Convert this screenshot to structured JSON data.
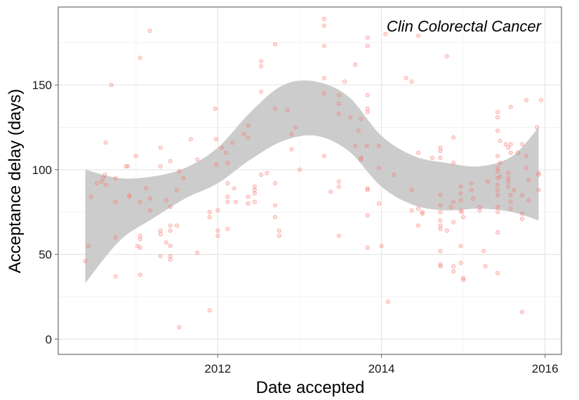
{
  "chart_data": {
    "type": "scatter",
    "title": "",
    "annotation": "Clin Colorectal Cancer",
    "xlabel": "Date accepted",
    "ylabel": "Acceptance delay (days)",
    "x_ticks": [
      2012,
      2014,
      2016
    ],
    "y_ticks": [
      0,
      50,
      100,
      150
    ],
    "xlim": [
      2010.05,
      2016.2
    ],
    "ylim": [
      -9,
      196
    ],
    "grid": true,
    "legend": "none",
    "point_color": "#f8766d",
    "band_color": "#cccccc",
    "points": [
      [
        2010.38,
        46
      ],
      [
        2010.42,
        55
      ],
      [
        2010.45,
        84
      ],
      [
        2010.52,
        92
      ],
      [
        2010.58,
        93
      ],
      [
        2010.6,
        95
      ],
      [
        2010.62,
        97
      ],
      [
        2010.63,
        116
      ],
      [
        2010.63,
        91
      ],
      [
        2010.7,
        150
      ],
      [
        2010.75,
        95
      ],
      [
        2010.75,
        81
      ],
      [
        2010.75,
        60
      ],
      [
        2010.75,
        37
      ],
      [
        2010.88,
        102
      ],
      [
        2010.9,
        102
      ],
      [
        2010.92,
        85
      ],
      [
        2010.92,
        84
      ],
      [
        2011.0,
        108
      ],
      [
        2011.02,
        55
      ],
      [
        2011.05,
        166
      ],
      [
        2011.05,
        81
      ],
      [
        2011.05,
        61
      ],
      [
        2011.05,
        59
      ],
      [
        2011.05,
        54
      ],
      [
        2011.05,
        38
      ],
      [
        2011.12,
        89
      ],
      [
        2011.17,
        182
      ],
      [
        2011.17,
        83
      ],
      [
        2011.17,
        76
      ],
      [
        2011.3,
        113
      ],
      [
        2011.3,
        102
      ],
      [
        2011.3,
        64
      ],
      [
        2011.3,
        62
      ],
      [
        2011.3,
        49
      ],
      [
        2011.37,
        82
      ],
      [
        2011.37,
        57
      ],
      [
        2011.42,
        105
      ],
      [
        2011.42,
        78
      ],
      [
        2011.42,
        67
      ],
      [
        2011.42,
        64
      ],
      [
        2011.42,
        55
      ],
      [
        2011.42,
        49
      ],
      [
        2011.42,
        47
      ],
      [
        2011.5,
        88
      ],
      [
        2011.5,
        67
      ],
      [
        2011.53,
        99
      ],
      [
        2011.53,
        7
      ],
      [
        2011.58,
        95
      ],
      [
        2011.67,
        118
      ],
      [
        2011.75,
        106
      ],
      [
        2011.75,
        51
      ],
      [
        2011.9,
        75
      ],
      [
        2011.9,
        72
      ],
      [
        2011.9,
        17
      ],
      [
        2011.97,
        136
      ],
      [
        2011.98,
        118
      ],
      [
        2011.98,
        103
      ],
      [
        2012.0,
        76
      ],
      [
        2012.0,
        64
      ],
      [
        2012.0,
        61
      ],
      [
        2012.05,
        113
      ],
      [
        2012.1,
        110
      ],
      [
        2012.12,
        104
      ],
      [
        2012.12,
        92
      ],
      [
        2012.12,
        84
      ],
      [
        2012.12,
        81
      ],
      [
        2012.12,
        65
      ],
      [
        2012.18,
        116
      ],
      [
        2012.2,
        89
      ],
      [
        2012.22,
        81
      ],
      [
        2012.32,
        121
      ],
      [
        2012.37,
        126
      ],
      [
        2012.37,
        119
      ],
      [
        2012.37,
        84
      ],
      [
        2012.37,
        80
      ],
      [
        2012.45,
        90
      ],
      [
        2012.45,
        88
      ],
      [
        2012.45,
        86
      ],
      [
        2012.45,
        81
      ],
      [
        2012.53,
        164
      ],
      [
        2012.53,
        161
      ],
      [
        2012.53,
        146
      ],
      [
        2012.53,
        97
      ],
      [
        2012.6,
        98
      ],
      [
        2012.7,
        174
      ],
      [
        2012.7,
        136
      ],
      [
        2012.7,
        92
      ],
      [
        2012.7,
        79
      ],
      [
        2012.7,
        72
      ],
      [
        2012.75,
        64
      ],
      [
        2012.75,
        61
      ],
      [
        2012.85,
        135
      ],
      [
        2012.9,
        121
      ],
      [
        2012.9,
        112
      ],
      [
        2012.95,
        125
      ],
      [
        2013.0,
        100
      ],
      [
        2013.3,
        189
      ],
      [
        2013.3,
        185
      ],
      [
        2013.3,
        173
      ],
      [
        2013.3,
        154
      ],
      [
        2013.3,
        145
      ],
      [
        2013.3,
        108
      ],
      [
        2013.38,
        87
      ],
      [
        2013.48,
        144
      ],
      [
        2013.48,
        139
      ],
      [
        2013.48,
        133
      ],
      [
        2013.48,
        93
      ],
      [
        2013.48,
        90
      ],
      [
        2013.48,
        61
      ],
      [
        2013.55,
        152
      ],
      [
        2013.62,
        131
      ],
      [
        2013.68,
        162
      ],
      [
        2013.68,
        114
      ],
      [
        2013.72,
        123
      ],
      [
        2013.75,
        130
      ],
      [
        2013.75,
        107
      ],
      [
        2013.75,
        106
      ],
      [
        2013.82,
        114
      ],
      [
        2013.83,
        178
      ],
      [
        2013.83,
        173
      ],
      [
        2013.83,
        144
      ],
      [
        2013.83,
        136
      ],
      [
        2013.83,
        134
      ],
      [
        2013.83,
        89
      ],
      [
        2013.83,
        88
      ],
      [
        2013.83,
        73
      ],
      [
        2013.83,
        54
      ],
      [
        2013.97,
        114
      ],
      [
        2013.97,
        101
      ],
      [
        2013.97,
        80
      ],
      [
        2014.0,
        55
      ],
      [
        2014.05,
        180
      ],
      [
        2014.08,
        22
      ],
      [
        2014.15,
        97
      ],
      [
        2014.3,
        154
      ],
      [
        2014.37,
        152
      ],
      [
        2014.37,
        88
      ],
      [
        2014.37,
        76
      ],
      [
        2014.45,
        179
      ],
      [
        2014.45,
        110
      ],
      [
        2014.45,
        77
      ],
      [
        2014.45,
        67
      ],
      [
        2014.5,
        75
      ],
      [
        2014.5,
        74
      ],
      [
        2014.62,
        107
      ],
      [
        2014.72,
        113
      ],
      [
        2014.72,
        111
      ],
      [
        2014.72,
        107
      ],
      [
        2014.72,
        85
      ],
      [
        2014.72,
        79
      ],
      [
        2014.72,
        75
      ],
      [
        2014.72,
        70
      ],
      [
        2014.72,
        67
      ],
      [
        2014.72,
        65
      ],
      [
        2014.72,
        52
      ],
      [
        2014.72,
        44
      ],
      [
        2014.72,
        43
      ],
      [
        2014.8,
        167
      ],
      [
        2014.8,
        64
      ],
      [
        2014.85,
        78
      ],
      [
        2014.88,
        119
      ],
      [
        2014.88,
        104
      ],
      [
        2014.88,
        81
      ],
      [
        2014.88,
        69
      ],
      [
        2014.88,
        43
      ],
      [
        2014.88,
        40
      ],
      [
        2014.97,
        90
      ],
      [
        2014.97,
        86
      ],
      [
        2014.97,
        82
      ],
      [
        2014.97,
        76
      ],
      [
        2014.97,
        55
      ],
      [
        2014.97,
        45
      ],
      [
        2014.98,
        75
      ],
      [
        2015.0,
        72
      ],
      [
        2015.0,
        35
      ],
      [
        2015.0,
        36
      ],
      [
        2015.1,
        92
      ],
      [
        2015.1,
        88
      ],
      [
        2015.12,
        83
      ],
      [
        2015.2,
        78
      ],
      [
        2015.2,
        76
      ],
      [
        2015.25,
        52
      ],
      [
        2015.27,
        43
      ],
      [
        2015.3,
        93
      ],
      [
        2015.42,
        134
      ],
      [
        2015.42,
        131
      ],
      [
        2015.42,
        123
      ],
      [
        2015.42,
        108
      ],
      [
        2015.42,
        101
      ],
      [
        2015.42,
        99
      ],
      [
        2015.42,
        95
      ],
      [
        2015.42,
        91
      ],
      [
        2015.42,
        88
      ],
      [
        2015.42,
        85
      ],
      [
        2015.42,
        78
      ],
      [
        2015.42,
        75
      ],
      [
        2015.42,
        63
      ],
      [
        2015.42,
        39
      ],
      [
        2015.45,
        117
      ],
      [
        2015.45,
        104
      ],
      [
        2015.45,
        96
      ],
      [
        2015.52,
        115
      ],
      [
        2015.55,
        113
      ],
      [
        2015.55,
        98
      ],
      [
        2015.55,
        95
      ],
      [
        2015.55,
        93
      ],
      [
        2015.55,
        90
      ],
      [
        2015.58,
        137
      ],
      [
        2015.58,
        115
      ],
      [
        2015.58,
        110
      ],
      [
        2015.58,
        85
      ],
      [
        2015.58,
        81
      ],
      [
        2015.58,
        77
      ],
      [
        2015.62,
        88
      ],
      [
        2015.67,
        110
      ],
      [
        2015.72,
        115
      ],
      [
        2015.72,
        85
      ],
      [
        2015.72,
        74
      ],
      [
        2015.72,
        71
      ],
      [
        2015.72,
        16
      ],
      [
        2015.77,
        141
      ],
      [
        2015.77,
        108
      ],
      [
        2015.77,
        101
      ],
      [
        2015.8,
        94
      ],
      [
        2015.8,
        82
      ],
      [
        2015.9,
        125
      ],
      [
        2015.92,
        98
      ],
      [
        2015.92,
        97
      ],
      [
        2015.92,
        88
      ],
      [
        2015.95,
        141
      ]
    ],
    "band_x": [
      2010.38,
      2010.8,
      2011.2,
      2011.6,
      2012.0,
      2012.4,
      2012.8,
      2013.2,
      2013.6,
      2014.0,
      2014.4,
      2014.8,
      2015.2,
      2015.6,
      2015.92
    ],
    "band_upper": [
      100,
      95,
      96,
      101,
      113,
      134,
      150,
      152,
      143,
      120,
      108,
      104,
      102,
      108,
      125
    ],
    "band_lower": [
      33,
      58,
      71,
      83,
      92,
      106,
      117,
      120,
      111,
      90,
      79,
      76,
      77,
      75,
      70
    ]
  }
}
